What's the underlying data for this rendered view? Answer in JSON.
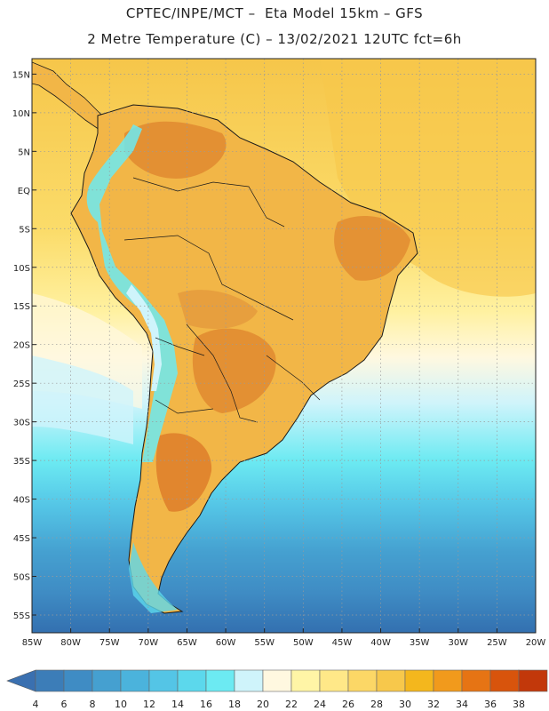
{
  "header": {
    "title_line1": "CPTEC/INPE/MCT –  Eta Model 15km – GFS",
    "title_line2": "2 Metre Temperature (C) – 13/02/2021 12UTC fct=6h"
  },
  "axes": {
    "lat_labels": [
      "15N",
      "10N",
      "5N",
      "EQ",
      "5S",
      "10S",
      "15S",
      "20S",
      "25S",
      "30S",
      "35S",
      "40S",
      "45S",
      "50S",
      "55S"
    ],
    "lon_labels": [
      "85W",
      "80W",
      "75W",
      "70W",
      "65W",
      "60W",
      "55W",
      "50W",
      "45W",
      "40W",
      "35W",
      "30W",
      "25W",
      "20W"
    ]
  },
  "colorbar": {
    "ticks": [
      "4",
      "6",
      "8",
      "10",
      "12",
      "14",
      "16",
      "18",
      "20",
      "22",
      "24",
      "26",
      "28",
      "30",
      "32",
      "34",
      "36",
      "38"
    ],
    "colors": [
      "#3c7db8",
      "#3f8cc4",
      "#45a0d0",
      "#4bb3dc",
      "#54c5e6",
      "#5cd8ec",
      "#6ceaf2",
      "#cff4fb",
      "#fff8e0",
      "#fff5a6",
      "#ffe888",
      "#fcd766",
      "#f7c84b",
      "#f4b71d",
      "#f19a1c",
      "#e67414",
      "#d8540c",
      "#c2380a"
    ]
  },
  "colors": {
    "warm_ocean": "#f8d25c",
    "land": "#f2b647",
    "hot": "#dc7a28",
    "boundary": "#1a1a1a"
  }
}
